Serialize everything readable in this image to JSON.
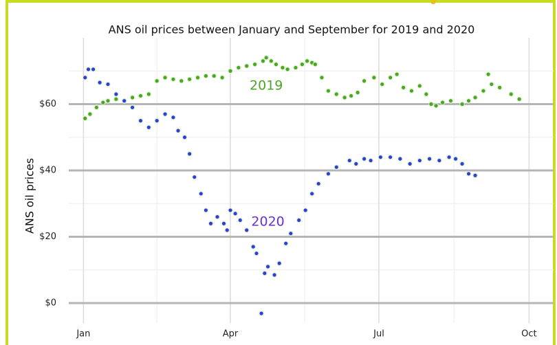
{
  "chart_data": {
    "type": "scatter",
    "title": "ANS oil prices between January and September for 2019 and 2020",
    "y_label": "ANS oil prices",
    "annotations": [
      {
        "text": "2019",
        "x": 112,
        "y": 65.5,
        "series": 0
      },
      {
        "text": "2020",
        "x": 113,
        "y": 24.5,
        "series": 1
      }
    ],
    "xlim": [
      -9,
      288
    ],
    "ylim": [
      -6,
      80
    ],
    "xticks": [
      {
        "value": 0,
        "label": "Jan"
      },
      {
        "value": 90,
        "label": "Apr"
      },
      {
        "value": 181,
        "label": "Jul"
      },
      {
        "value": 273,
        "label": "Oct"
      }
    ],
    "xticks_minor": [
      45,
      135.5,
      227
    ],
    "yticks": [
      {
        "value": 0,
        "label": "$0"
      },
      {
        "value": 20,
        "label": "$20"
      },
      {
        "value": 40,
        "label": "$40"
      },
      {
        "value": 60,
        "label": "$60"
      }
    ],
    "yticks_minor": [
      10,
      30,
      50,
      70
    ],
    "grid": true,
    "series": [
      {
        "name": "2019",
        "color": "#4ca626",
        "x": [
          1,
          4,
          8,
          12,
          15,
          20,
          25,
          30,
          35,
          40,
          45,
          50,
          55,
          60,
          65,
          70,
          75,
          80,
          85,
          90,
          95,
          100,
          105,
          110,
          112,
          115,
          118,
          122,
          125,
          130,
          134,
          137,
          140,
          142,
          146,
          150,
          155,
          160,
          164,
          168,
          172,
          178,
          183,
          188,
          192,
          196,
          201,
          206,
          210,
          213,
          216,
          220,
          225,
          232,
          236,
          240,
          245,
          248,
          250,
          255,
          262,
          267
        ],
        "values": [
          55.7,
          57,
          59,
          60.5,
          61,
          61.5,
          61,
          62,
          62.5,
          63,
          67,
          68,
          67.5,
          67,
          67.5,
          68,
          68.5,
          68.5,
          68,
          70,
          71,
          71.5,
          72,
          73,
          74,
          73,
          72,
          71,
          70.5,
          71,
          72,
          73,
          72.5,
          72,
          68,
          64,
          63,
          62,
          62.5,
          63.5,
          67,
          68,
          66,
          68,
          69,
          65,
          64,
          65.5,
          63,
          60,
          59.5,
          60.5,
          61,
          60,
          61,
          62,
          64,
          69,
          66,
          65,
          63,
          61.5
        ]
      },
      {
        "name": "2020",
        "color": "#2f3fd2",
        "x": [
          1,
          3,
          6,
          10,
          15,
          20,
          25,
          30,
          35,
          40,
          45,
          50,
          55,
          58,
          62,
          65,
          68,
          72,
          75,
          78,
          82,
          86,
          88,
          90,
          93,
          96,
          100,
          104,
          106,
          109,
          111,
          113,
          117,
          120,
          124,
          127,
          132,
          136,
          140,
          144,
          150,
          155,
          163,
          167,
          172,
          176,
          182,
          188,
          194,
          200,
          206,
          212,
          218,
          224,
          228,
          232,
          236,
          240
        ],
        "values": [
          68,
          70.5,
          70.5,
          66.5,
          66,
          63,
          61,
          59,
          55,
          53,
          55,
          57,
          56,
          52,
          50,
          45,
          38,
          33,
          28,
          24,
          26,
          24,
          22,
          28,
          27,
          25,
          22,
          17,
          15,
          -3.1,
          9,
          11,
          8.5,
          12,
          18,
          21,
          25,
          28,
          33,
          36,
          39,
          41,
          43,
          42,
          43.5,
          43,
          44,
          44,
          43.5,
          42,
          43,
          43.5,
          43,
          44,
          43.5,
          42,
          39,
          38.5
        ]
      }
    ]
  }
}
